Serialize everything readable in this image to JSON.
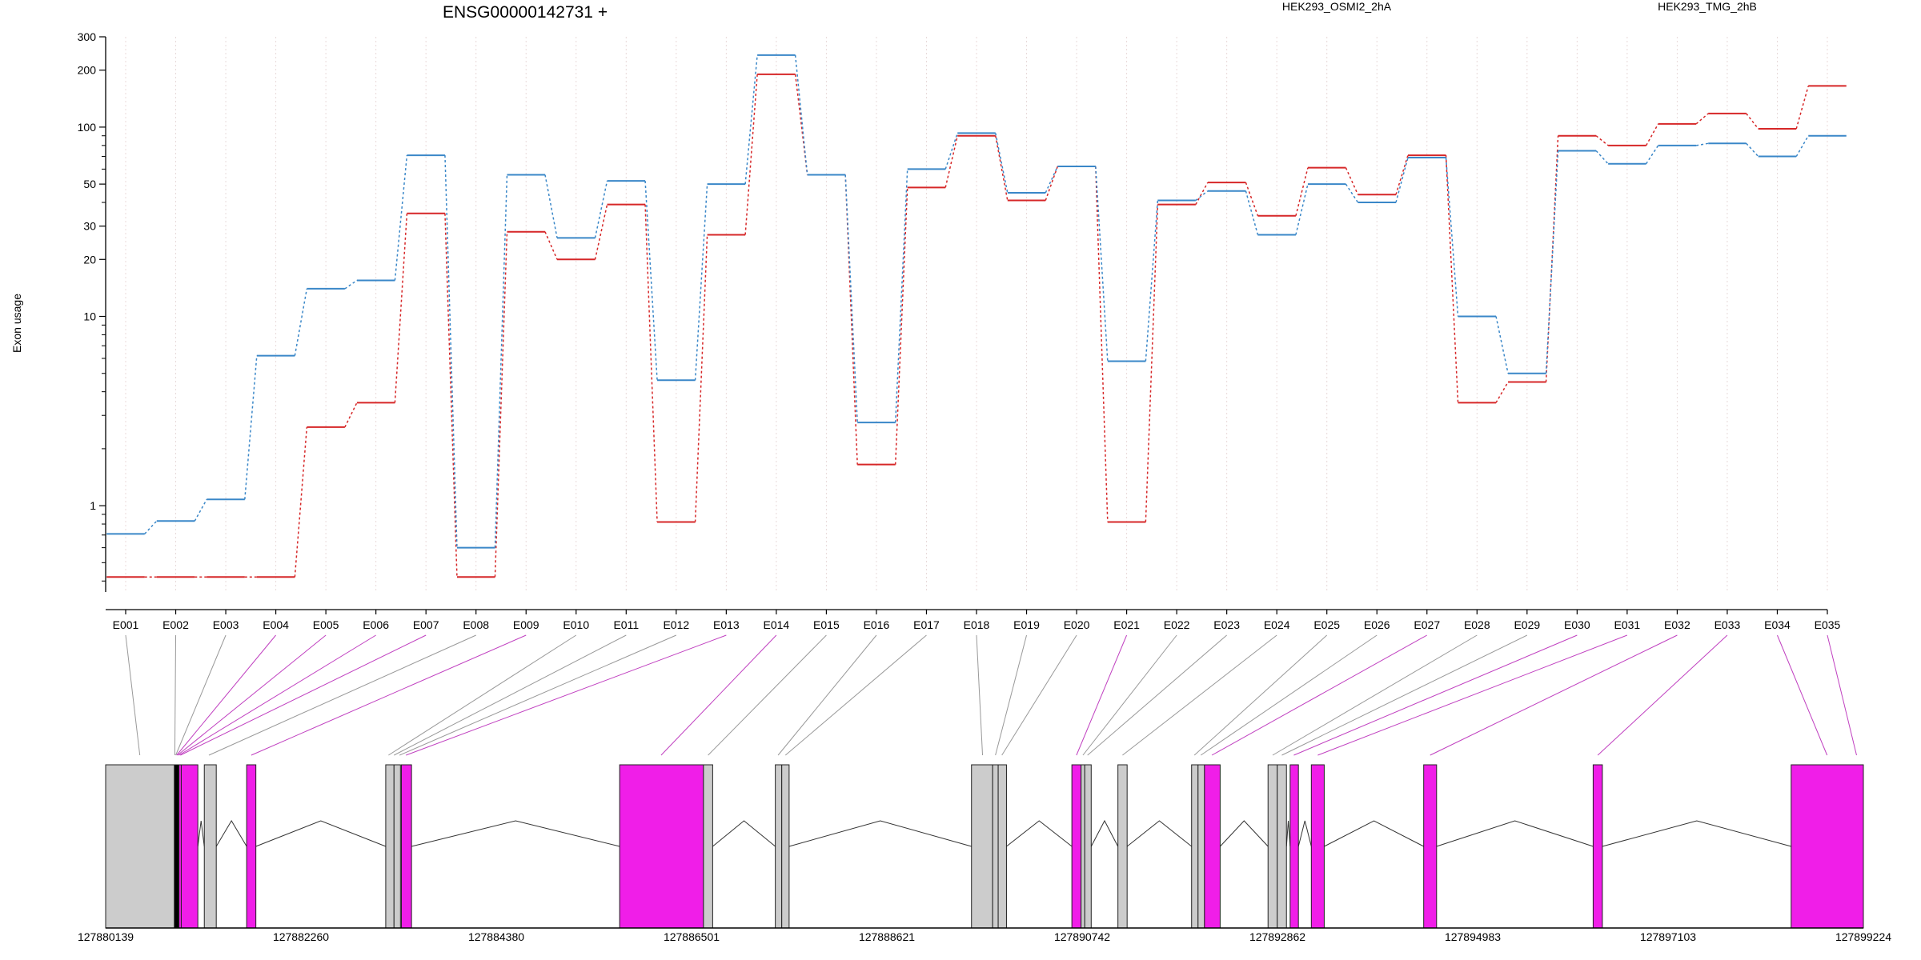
{
  "chart_data": {
    "type": "line",
    "title": "ENSG00000142731 +",
    "ylabel": "Exon usage",
    "xlabel": "",
    "y_scale": "log",
    "ylim": [
      0.35,
      300
    ],
    "y_ticks": [
      1,
      10,
      20,
      30,
      50,
      100,
      200,
      300
    ],
    "grid": "vertical dotted lines at each exon",
    "legend": "top, inline above plot",
    "categories": [
      "E001",
      "E002",
      "E003",
      "E004",
      "E005",
      "E006",
      "E007",
      "E008",
      "E009",
      "E010",
      "E011",
      "E012",
      "E013",
      "E014",
      "E015",
      "E016",
      "E017",
      "E018",
      "E019",
      "E020",
      "E021",
      "E022",
      "E023",
      "E024",
      "E025",
      "E026",
      "E027",
      "E028",
      "E029",
      "E030",
      "E031",
      "E032",
      "E033",
      "E034",
      "E035"
    ],
    "series": [
      {
        "name": "HEK293_OSMI2_2hA",
        "color": "#d62728",
        "values": [
          0.42,
          0.42,
          0.42,
          0.42,
          2.6,
          3.5,
          35,
          0.42,
          28,
          20,
          39,
          0.82,
          27,
          190,
          56,
          1.65,
          48,
          90,
          41,
          62,
          0.82,
          39,
          51,
          34,
          61,
          44,
          71,
          3.5,
          4.5,
          90,
          80,
          104,
          118,
          98,
          165
        ]
      },
      {
        "name": "HEK293_TMG_2hB",
        "color": "#3a87c8",
        "values": [
          0.71,
          0.83,
          1.08,
          6.2,
          14,
          15.5,
          71,
          0.6,
          56,
          26,
          52,
          4.6,
          50,
          240,
          56,
          2.75,
          60,
          93,
          45,
          62,
          5.8,
          41,
          46,
          27,
          50,
          40,
          69,
          10,
          5,
          75,
          64,
          80,
          82,
          70,
          90
        ]
      }
    ],
    "gene_model": {
      "start_coord": 127880139,
      "end_coord": 127899224,
      "coordinate_labels": [
        "127880139",
        "127882260",
        "127884380",
        "127886501",
        "127888621",
        "127890742",
        "127892862",
        "127894983",
        "127897103",
        "127899224"
      ],
      "highlight_color": "#f01ee8",
      "exons": [
        {
          "id": "E001",
          "start": 127880139,
          "end": 127880885,
          "color": "#cccccc"
        },
        {
          "id": "E002",
          "start": 127880885,
          "end": 127880935,
          "color": "#000000"
        },
        {
          "id": "E003",
          "start": 127880935,
          "end": 127880960,
          "color": "#f01ee8"
        },
        {
          "id": "E004",
          "start": 127880960,
          "end": 127881140,
          "color": "#f01ee8"
        },
        {
          "id": "E005",
          "start": 127881210,
          "end": 127881340,
          "color": "#cccccc"
        },
        {
          "id": "E006",
          "start": 127881670,
          "end": 127881770,
          "color": "#f01ee8"
        },
        {
          "id": "E007",
          "start": 127883180,
          "end": 127883270,
          "color": "#cccccc"
        },
        {
          "id": "E008",
          "start": 127883270,
          "end": 127883340,
          "color": "#cccccc"
        },
        {
          "id": "E009",
          "start": 127883350,
          "end": 127883460,
          "color": "#f01ee8"
        },
        {
          "id": "E010",
          "start": 127885720,
          "end": 127886630,
          "color": "#f01ee8"
        },
        {
          "id": "E011",
          "start": 127886630,
          "end": 127886730,
          "color": "#cccccc"
        },
        {
          "id": "E012",
          "start": 127887410,
          "end": 127887480,
          "color": "#cccccc"
        },
        {
          "id": "E013",
          "start": 127887480,
          "end": 127887560,
          "color": "#cccccc"
        },
        {
          "id": "E014",
          "start": 127889540,
          "end": 127889770,
          "color": "#cccccc"
        },
        {
          "id": "E015",
          "start": 127889770,
          "end": 127889830,
          "color": "#cccccc"
        },
        {
          "id": "E016",
          "start": 127889830,
          "end": 127889920,
          "color": "#cccccc"
        },
        {
          "id": "E017",
          "start": 127890630,
          "end": 127890730,
          "color": "#f01ee8"
        },
        {
          "id": "E018",
          "start": 127890730,
          "end": 127890770,
          "color": "#cccccc"
        },
        {
          "id": "E019",
          "start": 127890770,
          "end": 127890840,
          "color": "#cccccc"
        },
        {
          "id": "E020",
          "start": 127891130,
          "end": 127891230,
          "color": "#cccccc"
        },
        {
          "id": "E021",
          "start": 127891930,
          "end": 127892000,
          "color": "#cccccc"
        },
        {
          "id": "E022",
          "start": 127892000,
          "end": 127892070,
          "color": "#cccccc"
        },
        {
          "id": "E023",
          "start": 127892070,
          "end": 127892240,
          "color": "#f01ee8"
        },
        {
          "id": "E024",
          "start": 127892760,
          "end": 127892860,
          "color": "#cccccc"
        },
        {
          "id": "E025",
          "start": 127892860,
          "end": 127892960,
          "color": "#cccccc"
        },
        {
          "id": "E026",
          "start": 127893000,
          "end": 127893090,
          "color": "#f01ee8"
        },
        {
          "id": "E027",
          "start": 127893230,
          "end": 127893370,
          "color": "#f01ee8"
        },
        {
          "id": "E028",
          "start": 127894450,
          "end": 127894590,
          "color": "#f01ee8"
        },
        {
          "id": "E029",
          "start": 127896290,
          "end": 127896390,
          "color": "#f01ee8"
        },
        {
          "id": "E030",
          "start": 127898440,
          "end": 127899224,
          "color": "#f01ee8"
        }
      ],
      "connector_map": [
        {
          "exon": "E001",
          "target": 127880510,
          "color": "#999999"
        },
        {
          "exon": "E002",
          "target": 127880890,
          "color": "#999999"
        },
        {
          "exon": "E003",
          "target": 127880900,
          "color": "#999999"
        },
        {
          "exon": "E004",
          "target": 127880910,
          "color": "#c040c0"
        },
        {
          "exon": "E005",
          "target": 127880920,
          "color": "#c040c0"
        },
        {
          "exon": "E006",
          "target": 127880935,
          "color": "#c040c0"
        },
        {
          "exon": "E007",
          "target": 127880950,
          "color": "#c040c0"
        },
        {
          "exon": "E008",
          "target": 127881260,
          "color": "#999999"
        },
        {
          "exon": "E009",
          "target": 127881720,
          "color": "#c040c0"
        },
        {
          "exon": "E010",
          "target": 127883210,
          "color": "#999999"
        },
        {
          "exon": "E011",
          "target": 127883270,
          "color": "#999999"
        },
        {
          "exon": "E012",
          "target": 127883330,
          "color": "#999999"
        },
        {
          "exon": "E013",
          "target": 127883400,
          "color": "#c040c0"
        },
        {
          "exon": "E014",
          "target": 127886170,
          "color": "#c040c0"
        },
        {
          "exon": "E015",
          "target": 127886680,
          "color": "#999999"
        },
        {
          "exon": "E016",
          "target": 127887440,
          "color": "#999999"
        },
        {
          "exon": "E017",
          "target": 127887520,
          "color": "#999999"
        },
        {
          "exon": "E018",
          "target": 127889660,
          "color": "#999999"
        },
        {
          "exon": "E019",
          "target": 127889800,
          "color": "#999999"
        },
        {
          "exon": "E020",
          "target": 127889870,
          "color": "#999999"
        },
        {
          "exon": "E021",
          "target": 127890680,
          "color": "#c040c0"
        },
        {
          "exon": "E022",
          "target": 127890750,
          "color": "#999999"
        },
        {
          "exon": "E023",
          "target": 127890800,
          "color": "#999999"
        },
        {
          "exon": "E024",
          "target": 127891180,
          "color": "#999999"
        },
        {
          "exon": "E025",
          "target": 127891960,
          "color": "#999999"
        },
        {
          "exon": "E026",
          "target": 127892030,
          "color": "#999999"
        },
        {
          "exon": "E027",
          "target": 127892150,
          "color": "#c040c0"
        },
        {
          "exon": "E028",
          "target": 127892810,
          "color": "#999999"
        },
        {
          "exon": "E029",
          "target": 127892910,
          "color": "#999999"
        },
        {
          "exon": "E030",
          "target": 127893040,
          "color": "#c040c0"
        },
        {
          "exon": "E031",
          "target": 127893300,
          "color": "#c040c0"
        },
        {
          "exon": "E032",
          "target": 127894520,
          "color": "#c040c0"
        },
        {
          "exon": "E033",
          "target": 127896340,
          "color": "#c040c0"
        },
        {
          "exon": "E034",
          "target": 127898830,
          "color": "#c040c0"
        },
        {
          "exon": "E035",
          "target": 127899150,
          "color": "#c040c0"
        }
      ]
    }
  }
}
